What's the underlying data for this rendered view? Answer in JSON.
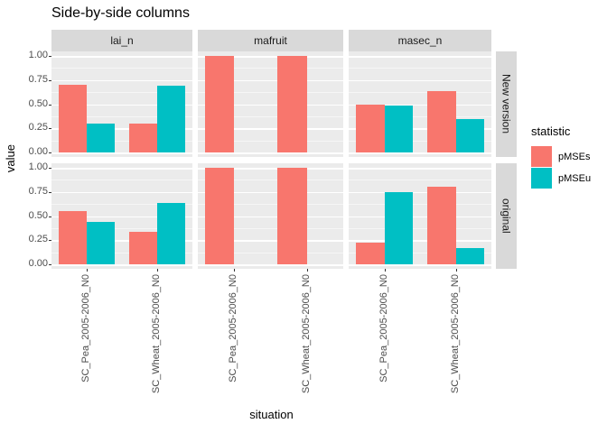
{
  "title": "Side-by-side columns",
  "chart_data": {
    "type": "bar",
    "title": "Side-by-side columns",
    "xlabel": "situation",
    "ylabel": "value",
    "ylim": [
      0,
      1
    ],
    "y_tick_labels": [
      "1.00",
      "0.75",
      "0.50",
      "0.25",
      "0.00"
    ],
    "x_categories": [
      "SC_Pea_2005-2006_N0",
      "SC_Wheat_2005-2006_N0"
    ],
    "facet_columns": [
      "lai_n",
      "mafruit",
      "masec_n"
    ],
    "facet_rows": [
      "New version",
      "original"
    ],
    "grid": "on",
    "legend": {
      "title": "statistic",
      "position": "right",
      "series": [
        {
          "name": "pMSEs",
          "color": "#F8766D"
        },
        {
          "name": "pMSEu",
          "color": "#00BFC4"
        }
      ]
    },
    "series_order_note": "each group = [pMSEs, pMSEu]; null = bar absent",
    "panels": [
      {
        "facet_row": "New version",
        "facet_col": "lai_n",
        "groups": [
          [
            0.7,
            0.3
          ],
          [
            0.3,
            0.69
          ]
        ]
      },
      {
        "facet_row": "New version",
        "facet_col": "mafruit",
        "groups": [
          [
            1.0,
            null
          ],
          [
            1.0,
            null
          ]
        ]
      },
      {
        "facet_row": "New version",
        "facet_col": "masec_n",
        "groups": [
          [
            0.5,
            0.49
          ],
          [
            0.64,
            0.35
          ]
        ]
      },
      {
        "facet_row": "original",
        "facet_col": "lai_n",
        "groups": [
          [
            0.55,
            0.44
          ],
          [
            0.34,
            0.64
          ]
        ]
      },
      {
        "facet_row": "original",
        "facet_col": "mafruit",
        "groups": [
          [
            1.0,
            null
          ],
          [
            1.0,
            null
          ]
        ]
      },
      {
        "facet_row": "original",
        "facet_col": "masec_n",
        "groups": [
          [
            0.22,
            0.75
          ],
          [
            0.8,
            0.17
          ]
        ]
      }
    ],
    "theme": {
      "panel_bg": "#EBEBEB",
      "strip_bg": "#D9D9D9",
      "grid_major": "#FFFFFF",
      "axis_text_color": "#4D4D4D"
    }
  }
}
